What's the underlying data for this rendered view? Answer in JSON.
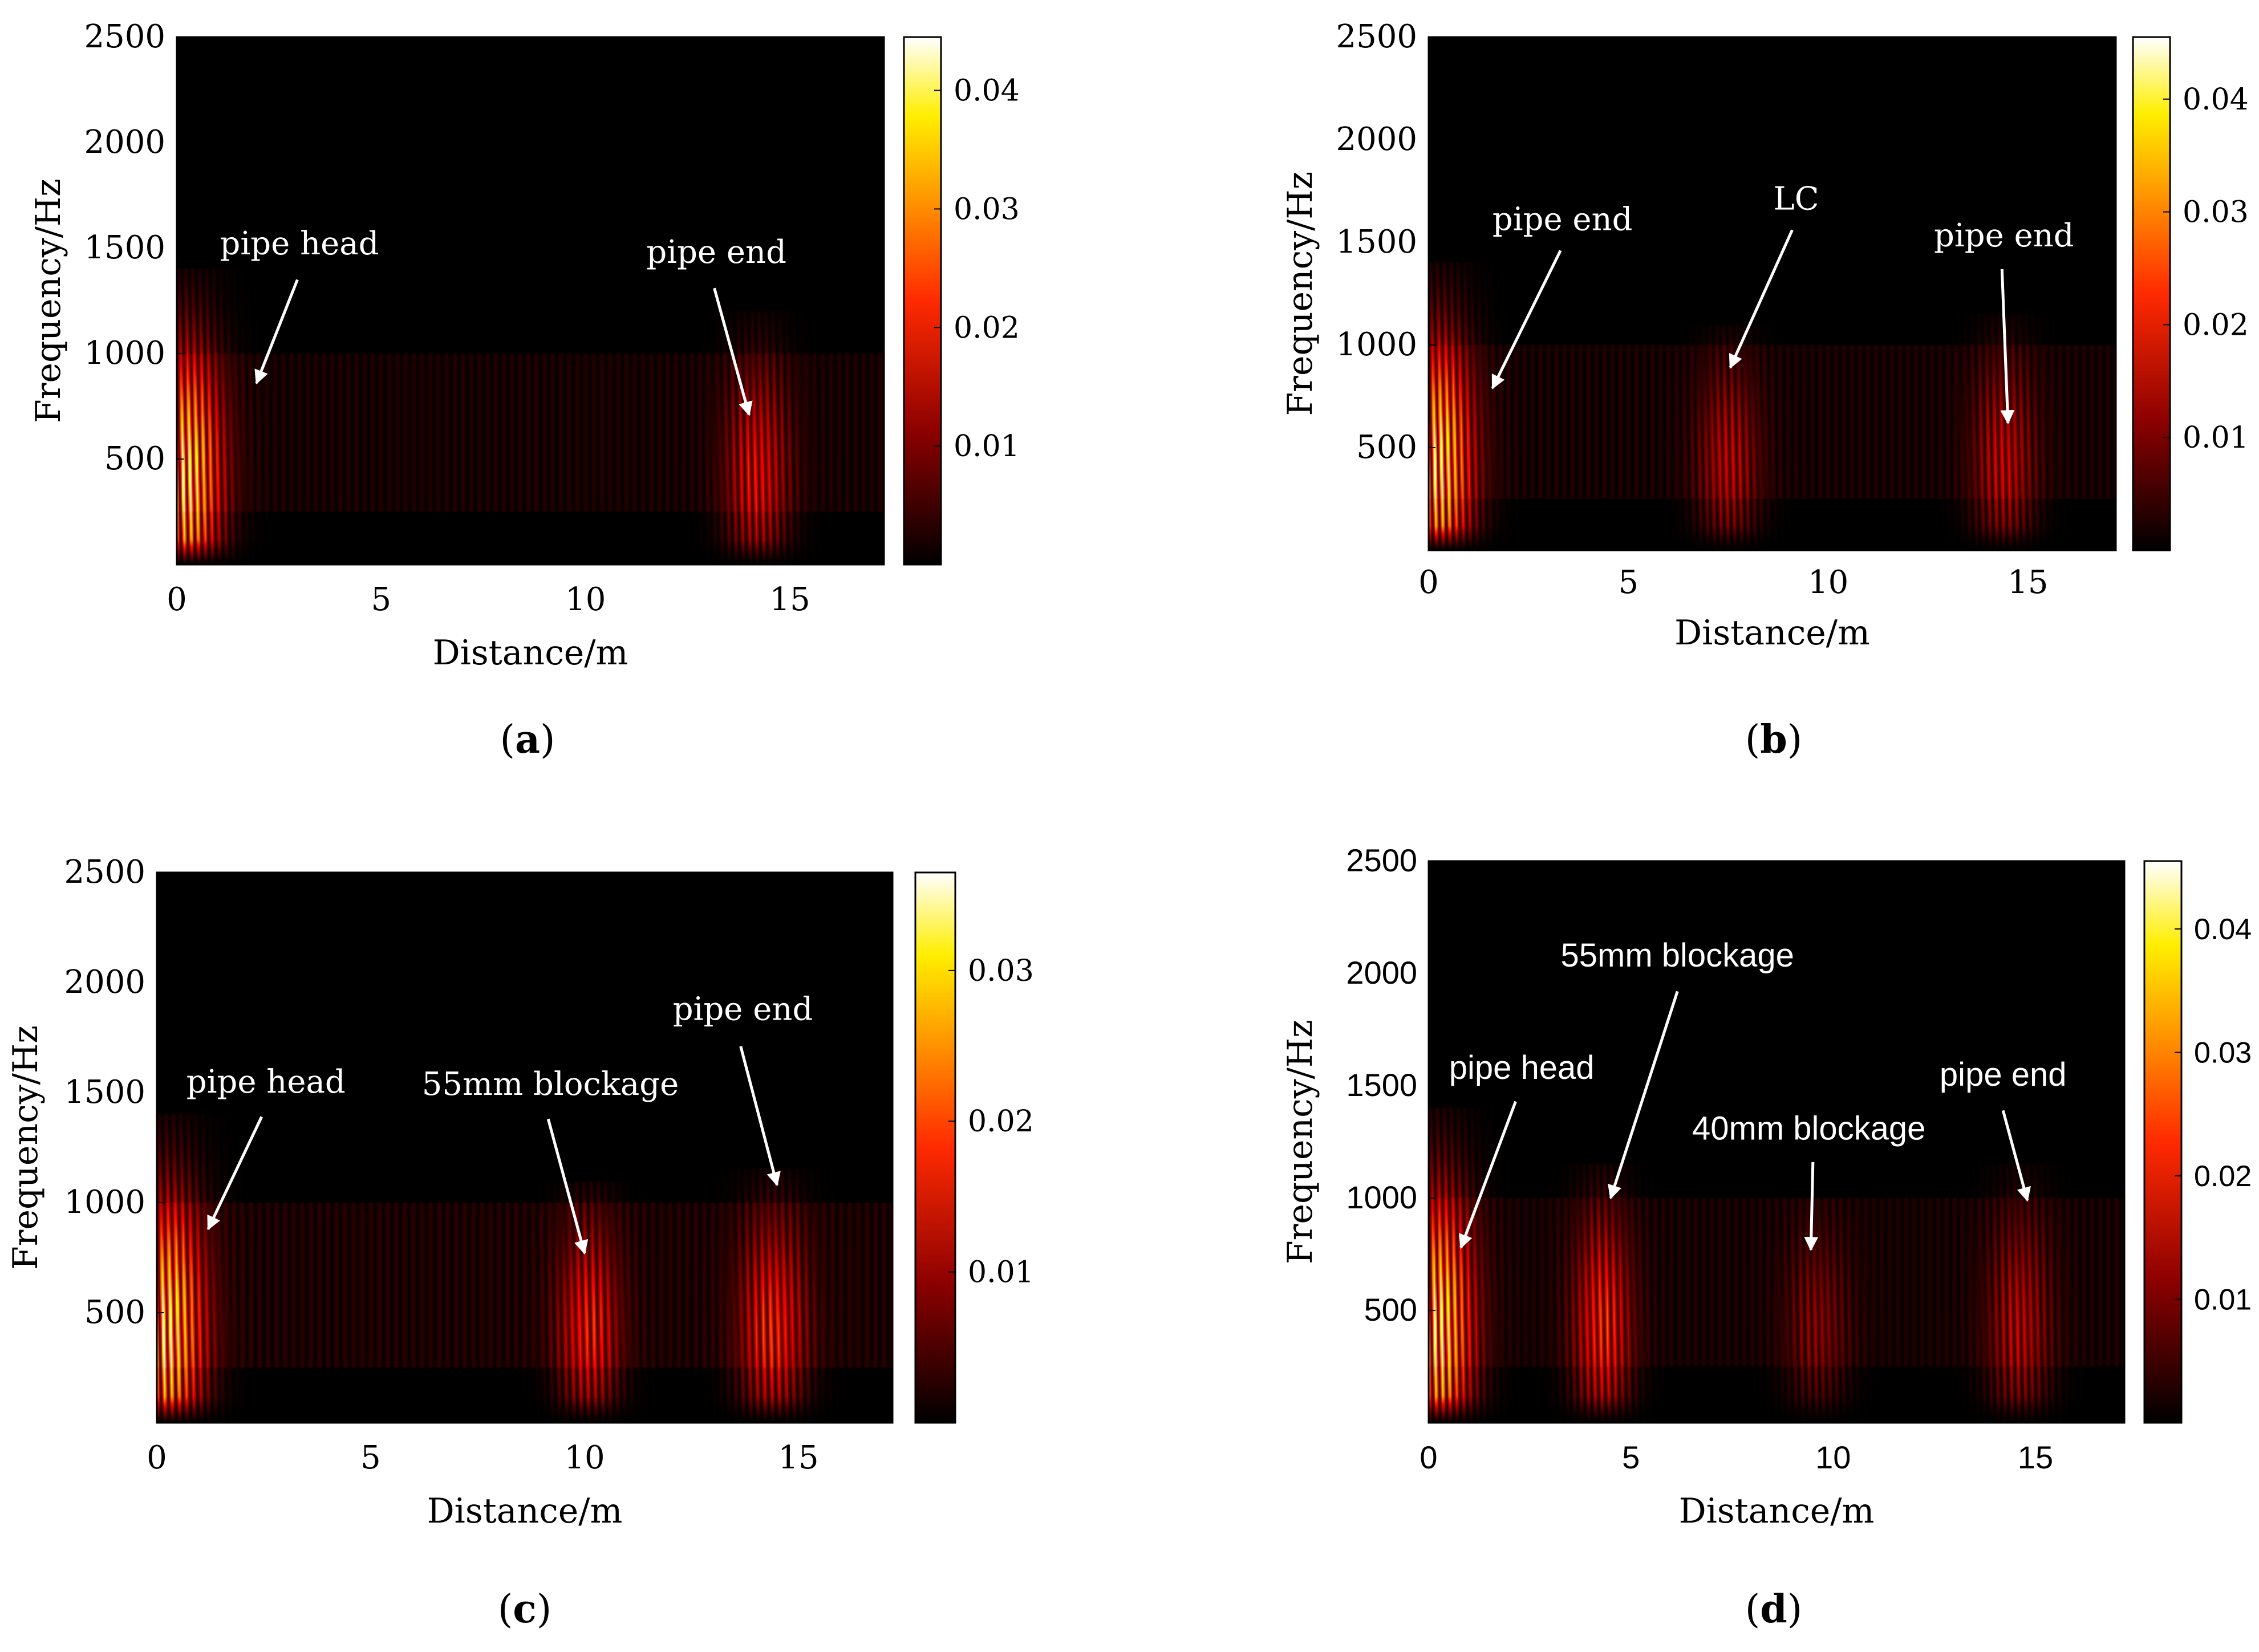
{
  "chart_data": [
    {
      "type": "heatmap",
      "panel_label": "a",
      "xlabel": "Distance/m",
      "ylabel": "Frequency/Hz",
      "xlim": [
        0,
        17.3
      ],
      "ylim": [
        0,
        2500
      ],
      "xticks": [
        0,
        5,
        10,
        15
      ],
      "yticks": [
        500,
        1000,
        1500,
        2000,
        2500
      ],
      "colorbar": {
        "range": [
          0,
          0.0445
        ],
        "ticks": [
          0.01,
          0.02,
          0.03,
          0.04
        ],
        "tick_labels": [
          "0.01",
          "0.02",
          "0.03",
          "0.04"
        ]
      },
      "peaks": [
        {
          "x": 0.2,
          "width": 1.6,
          "amp": 0.044,
          "fmax": 1400
        },
        {
          "x": 14.2,
          "width": 1.4,
          "amp": 0.02,
          "fmax": 1200
        }
      ],
      "annotations": [
        {
          "text": "pipe head",
          "text_x": 3.0,
          "text_y": 1470,
          "arrow_from": [
            2.95,
            1350
          ],
          "arrow_to": [
            1.95,
            860
          ]
        },
        {
          "text": "pipe end",
          "text_x": 13.2,
          "text_y": 1430,
          "arrow_from": [
            13.15,
            1310
          ],
          "arrow_to": [
            14.0,
            710
          ]
        }
      ]
    },
    {
      "type": "heatmap",
      "panel_label": "b",
      "xlabel": "Distance/m",
      "ylabel": "Frequency/Hz",
      "xlim": [
        0,
        17.2
      ],
      "ylim": [
        0,
        2500
      ],
      "xticks": [
        0,
        5,
        10,
        15
      ],
      "yticks": [
        500,
        1000,
        1500,
        2000,
        2500
      ],
      "colorbar": {
        "range": [
          0,
          0.0455
        ],
        "ticks": [
          0.01,
          0.02,
          0.03,
          0.04
        ],
        "tick_labels": [
          "0.01",
          "0.02",
          "0.03",
          "0.04"
        ]
      },
      "peaks": [
        {
          "x": 0.2,
          "width": 1.6,
          "amp": 0.045,
          "fmax": 1400
        },
        {
          "x": 7.5,
          "width": 1.4,
          "amp": 0.016,
          "fmax": 1100
        },
        {
          "x": 14.4,
          "width": 1.4,
          "amp": 0.017,
          "fmax": 1150
        }
      ],
      "annotations": [
        {
          "text": "pipe end",
          "text_x": 3.35,
          "text_y": 1560,
          "arrow_from": [
            3.3,
            1460
          ],
          "arrow_to": [
            1.6,
            790
          ]
        },
        {
          "text": "LC",
          "text_x": 9.2,
          "text_y": 1660,
          "arrow_from": [
            9.1,
            1560
          ],
          "arrow_to": [
            7.55,
            890
          ]
        },
        {
          "text": "pipe end",
          "text_x": 14.4,
          "text_y": 1480,
          "arrow_from": [
            14.35,
            1370
          ],
          "arrow_to": [
            14.5,
            620
          ]
        }
      ]
    },
    {
      "type": "heatmap",
      "panel_label": "c",
      "xlabel": "Distance/m",
      "ylabel": "Frequency/Hz",
      "xlim": [
        0,
        17.2
      ],
      "ylim": [
        0,
        2500
      ],
      "xticks": [
        0,
        5,
        10,
        15
      ],
      "yticks": [
        500,
        1000,
        1500,
        2000,
        2500
      ],
      "colorbar": {
        "range": [
          0,
          0.0365
        ],
        "ticks": [
          0.01,
          0.02,
          0.03
        ],
        "tick_labels": [
          "0.01",
          "0.02",
          "0.03"
        ]
      },
      "peaks": [
        {
          "x": 0.2,
          "width": 1.6,
          "amp": 0.036,
          "fmax": 1400
        },
        {
          "x": 10.1,
          "width": 1.3,
          "amp": 0.018,
          "fmax": 1100
        },
        {
          "x": 14.4,
          "width": 1.4,
          "amp": 0.019,
          "fmax": 1150
        }
      ],
      "annotations": [
        {
          "text": "pipe head",
          "text_x": 2.55,
          "text_y": 1500,
          "arrow_from": [
            2.45,
            1390
          ],
          "arrow_to": [
            1.2,
            880
          ]
        },
        {
          "text": "55mm blockage",
          "text_x": 9.2,
          "text_y": 1490,
          "arrow_from": [
            9.15,
            1380
          ],
          "arrow_to": [
            10.0,
            770
          ]
        },
        {
          "text": "pipe end",
          "text_x": 13.7,
          "text_y": 1830,
          "arrow_from": [
            13.65,
            1710
          ],
          "arrow_to": [
            14.5,
            1080
          ]
        }
      ]
    },
    {
      "type": "heatmap",
      "panel_label": "d",
      "xlabel": "Distance/m",
      "ylabel": "Frequency/Hz",
      "xlim": [
        0,
        17.2
      ],
      "ylim": [
        0,
        2500
      ],
      "xticks": [
        0,
        5,
        10,
        15
      ],
      "yticks": [
        500,
        1000,
        1500,
        2000,
        2500
      ],
      "colorbar": {
        "range": [
          0,
          0.0455
        ],
        "ticks": [
          0.01,
          0.02,
          0.03,
          0.04
        ],
        "tick_labels": [
          "0.01",
          "0.02",
          "0.03",
          "0.04"
        ]
      },
      "peaks": [
        {
          "x": 0.2,
          "width": 1.6,
          "amp": 0.045,
          "fmax": 1400
        },
        {
          "x": 4.3,
          "width": 1.3,
          "amp": 0.024,
          "fmax": 1150
        },
        {
          "x": 9.6,
          "width": 1.4,
          "amp": 0.011,
          "fmax": 1000
        },
        {
          "x": 14.6,
          "width": 1.4,
          "amp": 0.016,
          "fmax": 1150
        }
      ],
      "annotations": [
        {
          "text": "pipe head",
          "text_x": 2.3,
          "text_y": 1530,
          "arrow_from": [
            2.15,
            1430
          ],
          "arrow_to": [
            0.8,
            780
          ]
        },
        {
          "text": "55mm blockage",
          "text_x": 6.15,
          "text_y": 2030,
          "arrow_from": [
            6.15,
            1920
          ],
          "arrow_to": [
            4.5,
            1000
          ]
        },
        {
          "text": "40mm blockage",
          "text_x": 9.4,
          "text_y": 1260,
          "arrow_from": [
            9.5,
            1160
          ],
          "arrow_to": [
            9.45,
            770
          ]
        },
        {
          "text": "pipe end",
          "text_x": 14.2,
          "text_y": 1500,
          "arrow_from": [
            14.2,
            1390
          ],
          "arrow_to": [
            14.8,
            990
          ]
        }
      ]
    }
  ]
}
